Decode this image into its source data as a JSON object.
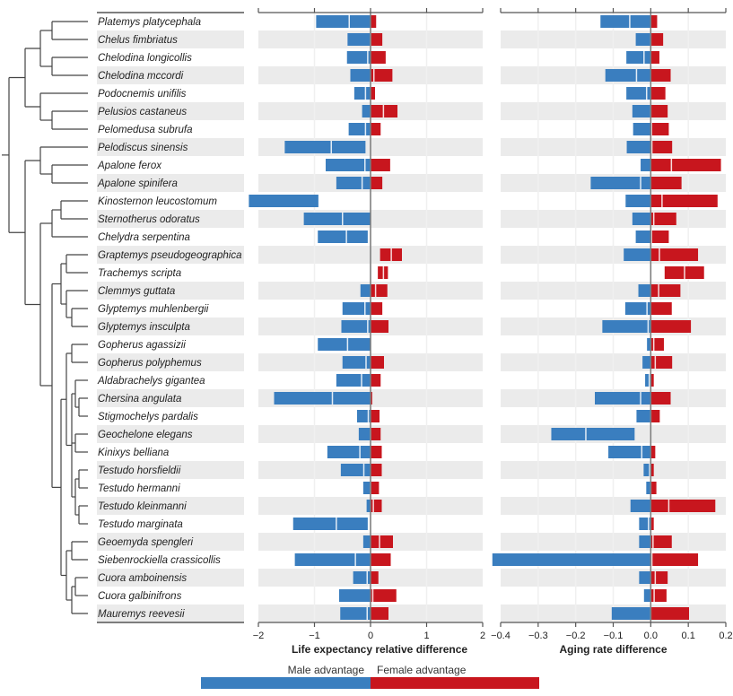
{
  "colors": {
    "male": "#3a7ebf",
    "female": "#c8161e",
    "stripe": "#ebebeb",
    "axis": "#555555",
    "zero_line": "#7a7a7a",
    "grid": "#f0f0f0",
    "tree": "#444444"
  },
  "legend": {
    "male_label": "Male advantage",
    "female_label": "Female advantage"
  },
  "chart_data": {
    "type": "bar",
    "description": "Phylogenetic tree of 34 turtle species with two paired range-bar panels (sex differences); each bar spans low..high with a white mark at the median; blue = male advantage (negative), red = female advantage (positive)",
    "species": [
      "Platemys platycephala",
      "Chelus fimbriatus",
      "Chelodina longicollis",
      "Chelodina mccordi",
      "Podocnemis unifilis",
      "Pelusios castaneus",
      "Pelomedusa subrufa",
      "Pelodiscus sinensis",
      "Apalone ferox",
      "Apalone spinifera",
      "Kinosternon leucostomum",
      "Sternotherus odoratus",
      "Chelydra serpentina",
      "Graptemys pseudogeographica",
      "Trachemys scripta",
      "Clemmys guttata",
      "Glyptemys muhlenbergii",
      "Glyptemys insculpta",
      "Gopherus agassizii",
      "Gopherus polyphemus",
      "Aldabrachelys gigantea",
      "Chersina angulata",
      "Stigmochelys pardalis",
      "Geochelone elegans",
      "Kinixys belliana",
      "Testudo horsfieldii",
      "Testudo hermanni",
      "Testudo kleinmanni",
      "Testudo marginata",
      "Geoemyda spengleri",
      "Siebenrockiella crassicollis",
      "Cuora amboinensis",
      "Cuora galbinifrons",
      "Mauremys reevesii"
    ],
    "tree": [
      [
        [
          [
            0,
            1
          ],
          [
            2,
            3
          ]
        ],
        [
          4,
          [
            5,
            6
          ]
        ]
      ],
      [
        [
          7,
          [
            8,
            9
          ]
        ],
        [
          [
            [
              10,
              11
            ],
            12
          ],
          [
            [
              [
                13,
                14
              ],
              [
                15,
                [
                  16,
                  17
                ]
              ]
            ],
            [
              [
                [
                  18,
                  19
                ],
                [
                  [
                    20,
                    [
                      21,
                      22
                    ]
                  ],
                  [
                    23,
                    24
                  ],
                  [
                    [
                      25,
                      26
                    ],
                    [
                      27,
                      28
                    ]
                  ]
                ]
              ],
              [
                [
                  29,
                  30
                ],
                [
                  [
                    31,
                    32
                  ],
                  33
                ]
              ]
            ]
          ]
        ]
      ]
    ],
    "panels": [
      {
        "xlabel": "Life expectancy relative difference",
        "xlim": [
          -2,
          2
        ],
        "ticks": [
          -2,
          -1,
          0,
          1,
          2
        ],
        "tick_labels": [
          "−2",
          "−1",
          "0",
          "1",
          "2"
        ],
        "low": [
          -0.97,
          -0.41,
          -0.42,
          -0.36,
          -0.29,
          -0.15,
          -0.39,
          -1.53,
          -0.8,
          -0.61,
          -2.17,
          -1.19,
          -0.94,
          0.17,
          0.13,
          -0.18,
          -0.5,
          -0.52,
          -0.94,
          -0.5,
          -0.61,
          -1.72,
          -0.24,
          -0.21,
          -0.77,
          -0.53,
          -0.13,
          -0.07,
          -1.38,
          -0.13,
          -1.35,
          -0.31,
          -0.56,
          -0.54
        ],
        "mid": [
          -0.38,
          0.0,
          -0.05,
          0.06,
          -0.09,
          0.23,
          -0.09,
          -0.7,
          -0.1,
          -0.15,
          null,
          -0.5,
          -0.43,
          0.37,
          0.23,
          0.09,
          -0.1,
          -0.05,
          -0.41,
          -0.08,
          -0.16,
          -0.68,
          -0.04,
          0.0,
          -0.19,
          -0.12,
          0.0,
          0.05,
          -0.61,
          0.16,
          -0.27,
          -0.06,
          0.04,
          -0.06
        ],
        "high": [
          0.1,
          0.21,
          0.27,
          0.39,
          0.08,
          0.48,
          0.18,
          -0.09,
          0.35,
          0.21,
          -0.93,
          0.0,
          -0.05,
          0.56,
          0.31,
          0.3,
          0.21,
          0.32,
          0.0,
          0.24,
          0.18,
          0.03,
          0.16,
          0.18,
          0.2,
          0.2,
          0.15,
          0.2,
          -0.05,
          0.4,
          0.36,
          0.14,
          0.46,
          0.32
        ]
      },
      {
        "xlabel": "Aging rate difference",
        "xlim": [
          -0.4,
          0.2
        ],
        "ticks": [
          -0.4,
          -0.3,
          -0.2,
          -0.1,
          0.0,
          0.1,
          0.2
        ],
        "tick_labels": [
          "−0.4",
          "−0.3",
          "−0.2",
          "−0.1",
          "0.0",
          "0.1",
          "0.2"
        ],
        "low": [
          -0.134,
          -0.04,
          -0.065,
          -0.121,
          -0.065,
          -0.049,
          -0.047,
          -0.064,
          -0.027,
          -0.16,
          -0.067,
          -0.049,
          -0.04,
          -0.072,
          0.037,
          -0.033,
          -0.068,
          -0.129,
          -0.01,
          -0.022,
          -0.015,
          -0.149,
          -0.038,
          -0.265,
          -0.113,
          -0.019,
          -0.012,
          -0.054,
          -0.031,
          -0.031,
          -0.422,
          -0.031,
          -0.018,
          -0.104
        ],
        "mid": [
          -0.056,
          0.0,
          -0.018,
          -0.038,
          -0.011,
          0.0,
          0.002,
          0.003,
          0.055,
          -0.027,
          0.03,
          0.008,
          0.002,
          0.023,
          0.09,
          0.021,
          -0.01,
          -0.007,
          0.008,
          0.012,
          -0.004,
          -0.027,
          0.0,
          -0.173,
          -0.024,
          -0.003,
          0.0,
          0.048,
          -0.006,
          0.006,
          0.003,
          0.012,
          0.009,
          0.0
        ],
        "high": [
          0.017,
          0.033,
          0.023,
          0.053,
          0.039,
          0.045,
          0.048,
          0.057,
          0.187,
          0.082,
          0.178,
          0.068,
          0.048,
          0.126,
          0.142,
          0.079,
          0.056,
          0.107,
          0.035,
          0.057,
          0.008,
          0.053,
          0.024,
          -0.043,
          0.012,
          0.008,
          0.015,
          0.172,
          0.008,
          0.056,
          0.126,
          0.045,
          0.042,
          0.102
        ]
      }
    ]
  }
}
